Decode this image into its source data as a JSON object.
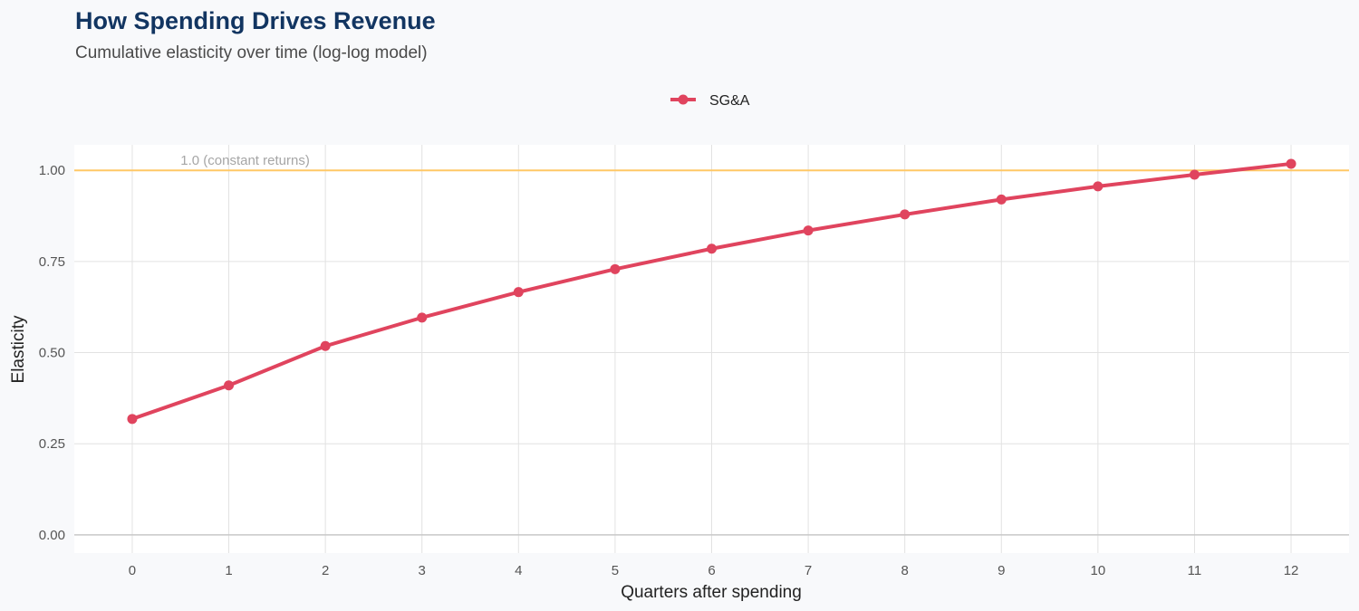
{
  "chart_data": {
    "type": "line",
    "title": "How Spending Drives Revenue",
    "subtitle": "Cumulative elasticity over time (log-log model)",
    "xlabel": "Quarters after spending",
    "ylabel": "Elasticity",
    "x": [
      0,
      1,
      2,
      3,
      4,
      5,
      6,
      7,
      8,
      9,
      10,
      11,
      12
    ],
    "xticks": [
      "0",
      "1",
      "2",
      "3",
      "4",
      "5",
      "6",
      "7",
      "8",
      "9",
      "10",
      "11",
      "12"
    ],
    "yticks": [
      "0.00",
      "0.25",
      "0.50",
      "0.75",
      "1.00"
    ],
    "ylim": [
      -0.05,
      1.07
    ],
    "xlim": [
      -0.6,
      12.6
    ],
    "series": [
      {
        "name": "SG&A",
        "color": "#e0445e",
        "values": [
          0.318,
          0.41,
          0.518,
          0.596,
          0.666,
          0.729,
          0.785,
          0.835,
          0.879,
          0.92,
          0.956,
          0.988,
          1.018
        ]
      }
    ],
    "reference_line": {
      "y": 1.0,
      "label": "1.0 (constant returns)",
      "color": "#ffc866"
    },
    "grid": true,
    "legend_position": "top-center",
    "panel_background": "#ffffff",
    "page_background": "#f8f9fb"
  }
}
